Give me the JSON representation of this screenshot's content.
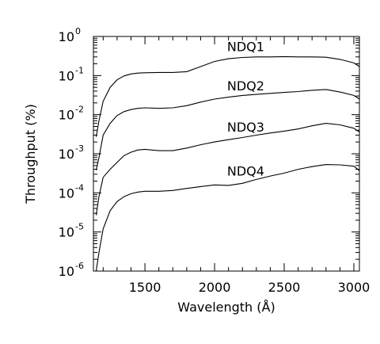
{
  "chart_data": {
    "type": "line",
    "title": "",
    "xlabel": "Wavelength (Å)",
    "ylabel": "Throughput (%)",
    "xlim": [
      1130,
      3040
    ],
    "ylim": [
      1e-06,
      1
    ],
    "yscale": "log",
    "grid": false,
    "x_ticks": [
      1500,
      2000,
      2500,
      3000
    ],
    "x_tick_labels": [
      "1500",
      "2000",
      "2500",
      "3000"
    ],
    "y_ticks": [
      {
        "value": 1,
        "base": "10",
        "exp": "0"
      },
      {
        "value": 0.1,
        "base": "10",
        "exp": "-1"
      },
      {
        "value": 0.01,
        "base": "10",
        "exp": "-2"
      },
      {
        "value": 0.001,
        "base": "10",
        "exp": "-3"
      },
      {
        "value": 0.0001,
        "base": "10",
        "exp": "-4"
      },
      {
        "value": 1e-05,
        "base": "10",
        "exp": "-5"
      },
      {
        "value": 1e-06,
        "base": "10",
        "exp": "-6"
      }
    ],
    "series": [
      {
        "name": "NDQ1",
        "label_at": [
          2090,
          0.42
        ],
        "points": [
          [
            1150,
            0.0027
          ],
          [
            1170,
            0.007
          ],
          [
            1200,
            0.022
          ],
          [
            1250,
            0.05
          ],
          [
            1300,
            0.078
          ],
          [
            1350,
            0.098
          ],
          [
            1400,
            0.11
          ],
          [
            1450,
            0.116
          ],
          [
            1500,
            0.118
          ],
          [
            1600,
            0.12
          ],
          [
            1700,
            0.12
          ],
          [
            1800,
            0.126
          ],
          [
            1900,
            0.17
          ],
          [
            2000,
            0.23
          ],
          [
            2100,
            0.27
          ],
          [
            2200,
            0.29
          ],
          [
            2300,
            0.3
          ],
          [
            2400,
            0.3
          ],
          [
            2500,
            0.305
          ],
          [
            2600,
            0.3
          ],
          [
            2700,
            0.3
          ],
          [
            2800,
            0.295
          ],
          [
            2900,
            0.26
          ],
          [
            3000,
            0.21
          ],
          [
            3040,
            0.17
          ]
        ]
      },
      {
        "name": "NDQ2",
        "label_at": [
          2090,
          0.042
        ],
        "points": [
          [
            1150,
            0.00038
          ],
          [
            1170,
            0.0008
          ],
          [
            1200,
            0.003
          ],
          [
            1250,
            0.006
          ],
          [
            1300,
            0.0095
          ],
          [
            1350,
            0.012
          ],
          [
            1400,
            0.0135
          ],
          [
            1450,
            0.0145
          ],
          [
            1500,
            0.015
          ],
          [
            1600,
            0.0145
          ],
          [
            1700,
            0.015
          ],
          [
            1800,
            0.017
          ],
          [
            1900,
            0.021
          ],
          [
            2000,
            0.025
          ],
          [
            2100,
            0.028
          ],
          [
            2200,
            0.031
          ],
          [
            2300,
            0.033
          ],
          [
            2400,
            0.035
          ],
          [
            2500,
            0.037
          ],
          [
            2600,
            0.039
          ],
          [
            2700,
            0.042
          ],
          [
            2800,
            0.044
          ],
          [
            2900,
            0.038
          ],
          [
            3000,
            0.031
          ],
          [
            3040,
            0.025
          ]
        ]
      },
      {
        "name": "NDQ3",
        "label_at": [
          2090,
          0.0037
        ],
        "points": [
          [
            1150,
            2.7e-05
          ],
          [
            1170,
            8e-05
          ],
          [
            1200,
            0.00025
          ],
          [
            1250,
            0.0004
          ],
          [
            1300,
            0.0006
          ],
          [
            1350,
            0.0009
          ],
          [
            1400,
            0.0011
          ],
          [
            1450,
            0.00125
          ],
          [
            1500,
            0.0013
          ],
          [
            1600,
            0.0012
          ],
          [
            1700,
            0.0012
          ],
          [
            1800,
            0.0014
          ],
          [
            1900,
            0.0017
          ],
          [
            2000,
            0.002
          ],
          [
            2100,
            0.0023
          ],
          [
            2200,
            0.0026
          ],
          [
            2300,
            0.003
          ],
          [
            2400,
            0.0034
          ],
          [
            2500,
            0.0038
          ],
          [
            2600,
            0.0043
          ],
          [
            2700,
            0.0052
          ],
          [
            2800,
            0.006
          ],
          [
            2900,
            0.0055
          ],
          [
            3000,
            0.0045
          ],
          [
            3040,
            0.0036
          ]
        ]
      },
      {
        "name": "NDQ4",
        "label_at": [
          2090,
          0.00028
        ],
        "points": [
          [
            1150,
            7e-07
          ],
          [
            1170,
            3e-06
          ],
          [
            1200,
            1.2e-05
          ],
          [
            1250,
            3.5e-05
          ],
          [
            1300,
            6e-05
          ],
          [
            1350,
            8e-05
          ],
          [
            1400,
            9.5e-05
          ],
          [
            1450,
            0.000105
          ],
          [
            1500,
            0.00011
          ],
          [
            1600,
            0.00011
          ],
          [
            1700,
            0.000115
          ],
          [
            1800,
            0.00013
          ],
          [
            1900,
            0.000145
          ],
          [
            2000,
            0.00016
          ],
          [
            2100,
            0.000155
          ],
          [
            2200,
            0.000175
          ],
          [
            2300,
            0.00022
          ],
          [
            2400,
            0.00027
          ],
          [
            2500,
            0.00032
          ],
          [
            2600,
            0.0004
          ],
          [
            2700,
            0.00047
          ],
          [
            2800,
            0.00053
          ],
          [
            2900,
            0.00052
          ],
          [
            3000,
            0.00048
          ],
          [
            3040,
            0.00037
          ]
        ]
      }
    ]
  }
}
